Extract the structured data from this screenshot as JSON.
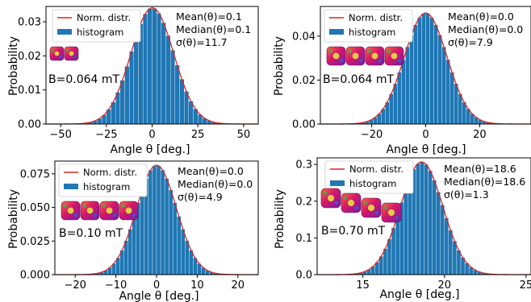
{
  "colors": {
    "bar": "#1f77b4",
    "curve": "#d62728",
    "axis": "#000000",
    "bar_edge": "#ffffff"
  },
  "chart_data": [
    {
      "type": "bar",
      "xlabel": "Angle θ [deg.]",
      "ylabel": "Probability",
      "xlim": [
        -58,
        58
      ],
      "ylim": [
        0,
        0.0345
      ],
      "xticks": [
        -50,
        -25,
        0,
        25,
        50
      ],
      "xtick_labels": [
        "−50",
        "−25",
        "0",
        "25",
        "50"
      ],
      "yticks": [
        0,
        0.01,
        0.02,
        0.03
      ],
      "ytick_labels": [
        "0.00",
        "0.01",
        "0.02",
        "0.03"
      ],
      "legend": {
        "position": "top-left",
        "entries": [
          "Norm. distr.",
          "histogram"
        ]
      },
      "stats": [
        "Mean(θ)=0.1",
        "Median(θ)=0.1",
        "σ(θ)=11.7"
      ],
      "field_label": "B=0.064 mT",
      "cubes": 2,
      "distribution": {
        "mean": 0.1,
        "sd": 11.7
      },
      "bin_width": 2.5,
      "bins": {
        "start": -55,
        "end": 55
      }
    },
    {
      "type": "bar",
      "xlabel": "Angle θ [deg.]",
      "ylabel": "Probability",
      "xlim": [
        -39,
        39
      ],
      "ylim": [
        0,
        0.0535
      ],
      "xticks": [
        -20,
        0,
        20
      ],
      "xtick_labels": [
        "−20",
        "0",
        "20"
      ],
      "yticks": [
        0,
        0.02,
        0.04
      ],
      "ytick_labels": [
        "0.00",
        "0.02",
        "0.04"
      ],
      "legend": {
        "position": "top-left",
        "entries": [
          "Norm. distr.",
          "histogram"
        ]
      },
      "stats": [
        "Mean(θ)=0.0",
        "Median(θ)=0.0",
        "σ(θ)=7.9"
      ],
      "field_label": "B=0.064 mT",
      "cubes": 4,
      "distribution": {
        "mean": 0.0,
        "sd": 7.9
      },
      "bin_width": 1.5,
      "bins": {
        "start": -37.5,
        "end": 37.5
      }
    },
    {
      "type": "bar",
      "xlabel": "Angle θ [deg.]",
      "ylabel": "Probability",
      "xlim": [
        -25,
        25
      ],
      "ylim": [
        0,
        0.0845
      ],
      "xticks": [
        -20,
        -10,
        0,
        10,
        20
      ],
      "xtick_labels": [
        "−20",
        "−10",
        "0",
        "10",
        "20"
      ],
      "yticks": [
        0,
        0.025,
        0.05,
        0.075
      ],
      "ytick_labels": [
        "0.000",
        "0.025",
        "0.050",
        "0.075"
      ],
      "legend": {
        "position": "top-left",
        "entries": [
          "Norm. distr.",
          "histogram"
        ]
      },
      "stats": [
        "Mean(θ)=0.0",
        "Median(θ)=0.0",
        "σ(θ)=4.9"
      ],
      "field_label": "B=0.10 mT",
      "cubes": 4,
      "distribution": {
        "mean": 0.0,
        "sd": 4.9
      },
      "bin_width": 1.0,
      "bins": {
        "start": -24,
        "end": 24
      }
    },
    {
      "type": "bar",
      "xlabel": "Angle θ [deg.]",
      "ylabel": "Probability",
      "xlim": [
        12.2,
        25.3
      ],
      "ylim": [
        0,
        0.318
      ],
      "xticks": [
        15,
        20,
        25
      ],
      "xtick_labels": [
        "15",
        "20",
        "25"
      ],
      "yticks": [
        0,
        0.1,
        0.2,
        0.3
      ],
      "ytick_labels": [
        "0.0",
        "0.1",
        "0.2",
        "0.3"
      ],
      "legend": {
        "position": "top-left",
        "entries": [
          "Norm. distr.",
          "histogram"
        ]
      },
      "stats": [
        "Mean(θ)=18.6",
        "Median(θ)=18.6",
        "σ(θ)=1.3"
      ],
      "field_label": "B=0.70 mT",
      "cubes": 4,
      "distribution": {
        "mean": 18.6,
        "sd": 1.3
      },
      "bin_width": 0.25,
      "bins": {
        "start": 13.0,
        "end": 24.25
      }
    }
  ]
}
